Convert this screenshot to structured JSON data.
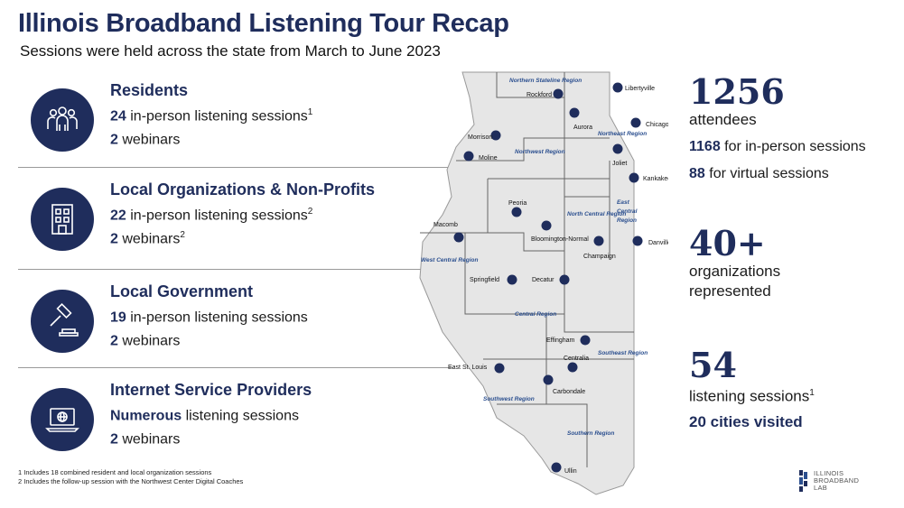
{
  "title": "Illinois Broadband Listening Tour Recap",
  "subtitle": "Sessions were held across the state from March to June 2023",
  "categories": [
    {
      "heading": "Residents",
      "line1_num": "24",
      "line1_text": " in-person listening sessions",
      "line1_sup": "1",
      "line2_num": "2",
      "line2_text": " webinars",
      "line2_sup": "",
      "icon": "group-icon"
    },
    {
      "heading": "Local Organizations & Non-Profits",
      "line1_num": "22",
      "line1_text": " in-person listening sessions",
      "line1_sup": "2",
      "line2_num": "2",
      "line2_text": " webinars",
      "line2_sup": "2",
      "icon": "building-icon"
    },
    {
      "heading": "Local Government",
      "line1_num": "19",
      "line1_text": " in-person listening sessions",
      "line1_sup": "",
      "line2_num": "2",
      "line2_text": " webinars",
      "line2_sup": "",
      "icon": "gavel-icon"
    },
    {
      "heading": "Internet Service Providers",
      "line1_num": "Numerous",
      "line1_text": " listening sessions",
      "line1_sup": "",
      "line2_num": "2",
      "line2_text": " webinars",
      "line2_sup": "",
      "icon": "laptop-globe-icon"
    }
  ],
  "footnotes": {
    "note1": "1 Includes 18 combined resident and local organization sessions",
    "note2": "2 Includes the follow-up session with the Northwest Center Digital Coaches"
  },
  "map": {
    "cities": [
      "Libertyville",
      "Rockford",
      "Aurora",
      "Chicago",
      "Morrison",
      "Moline",
      "Joliet",
      "Kankakee",
      "Peoria",
      "Macomb",
      "Bloomington-Normal",
      "Champaign",
      "Danville",
      "Springfield",
      "Decatur",
      "Effingham",
      "Centralia",
      "East St. Louis",
      "Carbondale",
      "Ullin"
    ],
    "regions": [
      "Northern Stateline Region",
      "Northeast Region",
      "Northwest Region",
      "North Central Region",
      "East Central Region",
      "West Central Region",
      "Central Region",
      "Southeast Region",
      "Southwest Region",
      "Southern Region"
    ],
    "dot_color": "#1f2d5c",
    "land_color": "#e6e6e6"
  },
  "stats": {
    "attendees_num": "1256",
    "attendees_label": "attendees",
    "inperson_num": "1168",
    "inperson_text": " for in-person sessions",
    "virtual_num": "88",
    "virtual_text": " for virtual sessions",
    "orgs_num": "40+",
    "orgs_label1": "organizations",
    "orgs_label2": "represented",
    "sessions_num": "54",
    "sessions_label": "listening sessions",
    "sessions_sup": "1",
    "cities_visited": "20 cities visited"
  },
  "logo": {
    "line1": "ILLINOIS",
    "line2": "BROADBAND",
    "line3": "LAB"
  },
  "colors": {
    "navy": "#1f2d5c",
    "region_label": "#2b4f8f"
  }
}
